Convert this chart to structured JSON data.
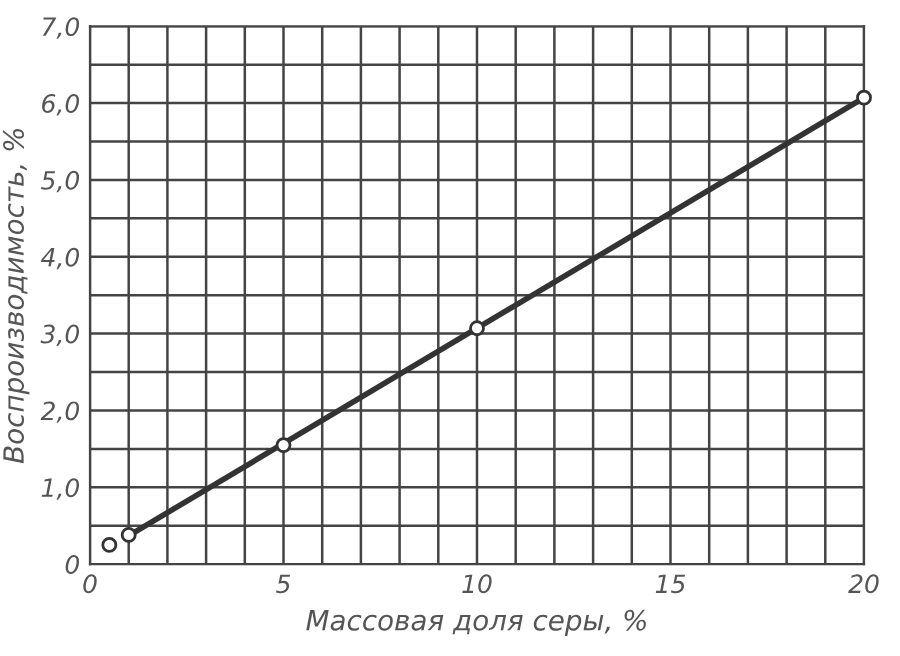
{
  "chart_data": {
    "type": "line",
    "xlabel": "Массовая доля серы, %",
    "ylabel": "Воспроизводимость, %",
    "xlim": [
      0,
      20
    ],
    "ylim": [
      0,
      7
    ],
    "xticks": [
      0,
      {
        "value": 1,
        "label": null
      },
      {
        "value": 2,
        "label": null
      },
      {
        "value": 3,
        "label": null
      },
      {
        "value": 4,
        "label": null
      },
      5,
      {
        "value": 6,
        "label": null
      },
      {
        "value": 7,
        "label": null
      },
      {
        "value": 8,
        "label": null
      },
      {
        "value": 9,
        "label": null
      },
      10,
      {
        "value": 11,
        "label": null
      },
      {
        "value": 12,
        "label": null
      },
      {
        "value": 13,
        "label": null
      },
      {
        "value": 14,
        "label": null
      },
      15,
      {
        "value": 16,
        "label": null
      },
      {
        "value": 17,
        "label": null
      },
      {
        "value": 18,
        "label": null
      },
      {
        "value": 19,
        "label": null
      },
      20
    ],
    "yticks": [
      0,
      {
        "value": 0.5,
        "label": null
      },
      {
        "value": 1,
        "label": "1,0"
      },
      {
        "value": 1.5,
        "label": null
      },
      {
        "value": 2,
        "label": "2,0"
      },
      {
        "value": 2.5,
        "label": null
      },
      {
        "value": 3,
        "label": "3,0"
      },
      {
        "value": 3.5,
        "label": null
      },
      {
        "value": 4,
        "label": "4,0"
      },
      {
        "value": 4.5,
        "label": null
      },
      {
        "value": 5,
        "label": "5,0"
      },
      {
        "value": 5.5,
        "label": null
      },
      {
        "value": 6,
        "label": "6,0"
      },
      {
        "value": 6.5,
        "label": null
      },
      {
        "value": 7,
        "label": "7,0"
      }
    ],
    "grid": true,
    "series": [
      {
        "color": "#333333",
        "x": [
          1,
          20
        ],
        "values": [
          0.37,
          6.07
        ],
        "marker": "none",
        "line_style": "solid"
      },
      {
        "type": "scatter",
        "color": "#333333",
        "x": [
          0.5,
          1,
          5,
          10,
          20
        ],
        "values": [
          0.25,
          0.38,
          1.55,
          3.07,
          6.07
        ],
        "marker": "circle"
      }
    ]
  }
}
